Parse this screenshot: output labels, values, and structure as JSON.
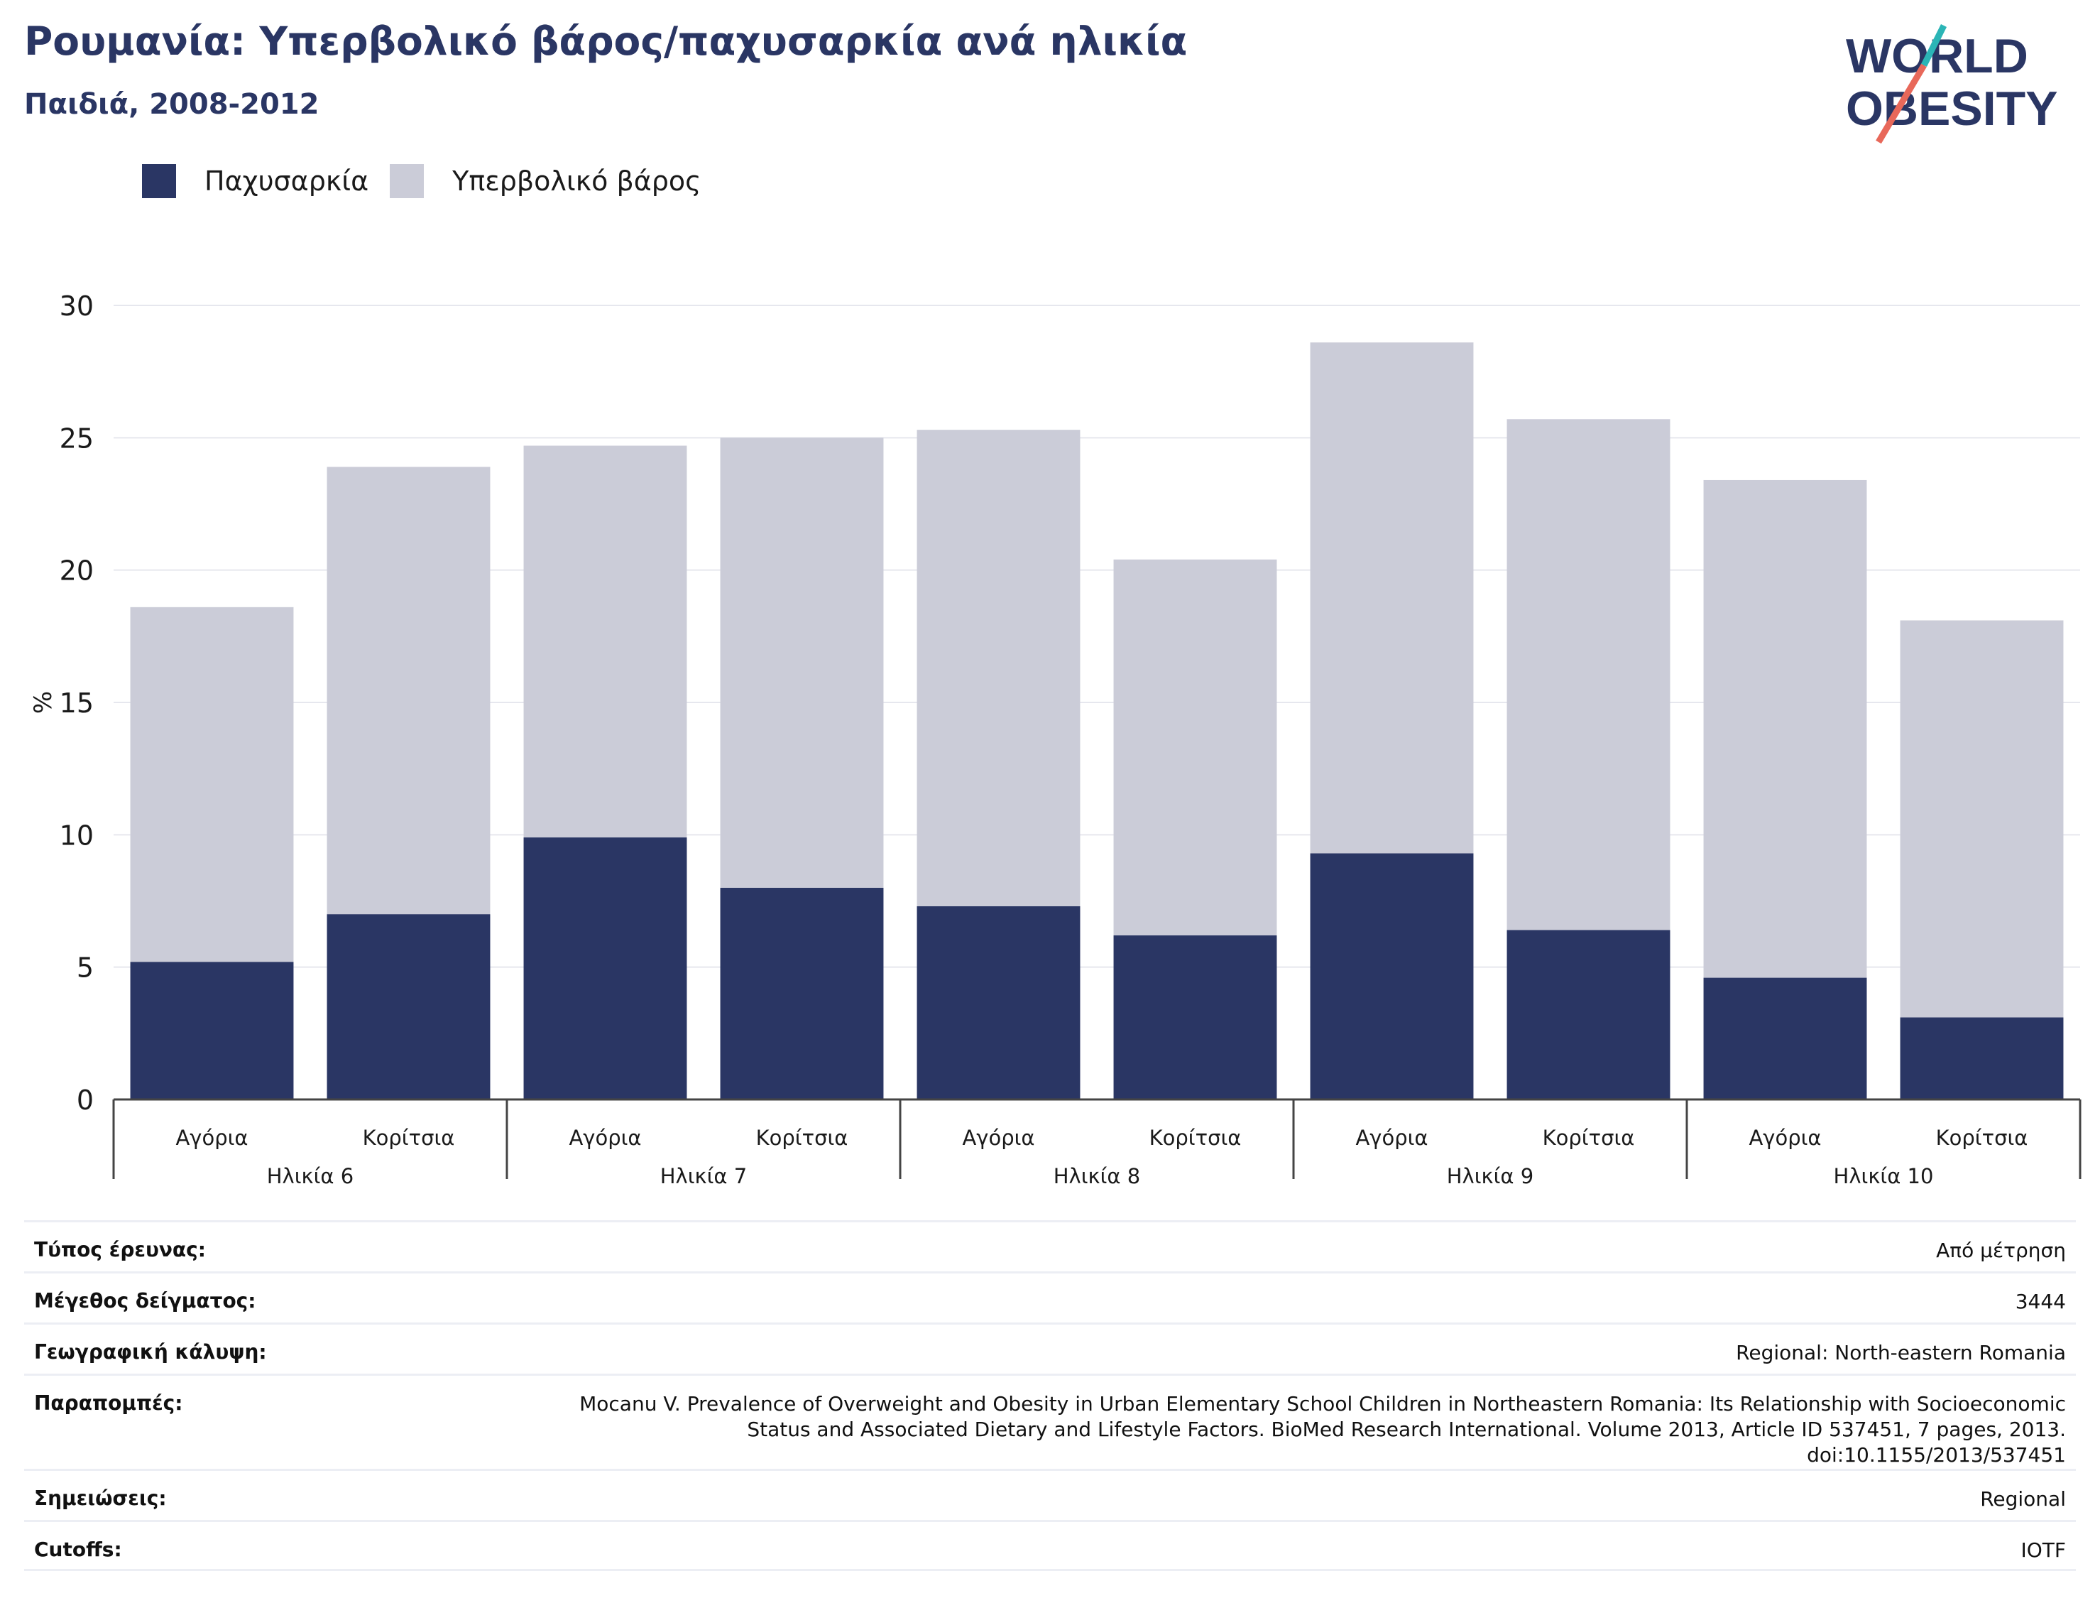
{
  "header": {
    "title": "Ρουμανία: Υπερβολικό βάρος/παχυσαρκία ανά ηλικία",
    "subtitle": "Παιδιά, 2008-2012"
  },
  "logo": {
    "line1": "WORLD",
    "line2": "OBESITY",
    "colors": {
      "text": "#2a3664",
      "slash_red": "#e8685a",
      "slash_teal": "#2bb5b6"
    }
  },
  "legend": [
    {
      "label": "Παχυσαρκία",
      "color": "#2a3664"
    },
    {
      "label": "Υπερβολικό βάρος",
      "color": "#cbccd8"
    }
  ],
  "chart_data": {
    "type": "bar",
    "stacked": true,
    "ylabel": "%",
    "ylim": [
      0,
      30
    ],
    "yticks": [
      0,
      5,
      10,
      15,
      20,
      25,
      30
    ],
    "grid": true,
    "categories": [
      "Αγόρια",
      "Κορίτσια",
      "Αγόρια",
      "Κορίτσια",
      "Αγόρια",
      "Κορίτσια",
      "Αγόρια",
      "Κορίτσια",
      "Αγόρια",
      "Κορίτσια"
    ],
    "groups": [
      "Ηλικία 6",
      "Ηλικία 7",
      "Ηλικία 8",
      "Ηλικία 9",
      "Ηλικία 10"
    ],
    "series": [
      {
        "name": "Παχυσαρκία",
        "color": "#2a3664",
        "values": [
          5.2,
          7.0,
          9.9,
          8.0,
          7.3,
          6.2,
          9.3,
          6.4,
          4.6,
          3.1
        ]
      },
      {
        "name": "Υπερβολικό βάρος",
        "color": "#cbccd8",
        "values": [
          13.4,
          16.9,
          14.8,
          17.0,
          18.0,
          14.2,
          19.3,
          19.3,
          18.8,
          15.0
        ]
      }
    ]
  },
  "info": [
    {
      "label": "Τύπος έρευνας:",
      "value": "Από μέτρηση"
    },
    {
      "label": "Μέγεθος δείγματος:",
      "value": "3444"
    },
    {
      "label": "Γεωγραφική κάλυψη:",
      "value": "Regional: North-eastern Romania"
    },
    {
      "label": "Παραπομπές:",
      "value": "Mocanu V. Prevalence of Overweight and Obesity in Urban Elementary School Children in Northeastern Romania: Its Relationship with Socioeconomic Status and Associated Dietary and Lifestyle Factors. BioMed Research International. Volume 2013, Article ID 537451, 7 pages, 2013. doi:10.1155/2013/537451"
    },
    {
      "label": "Σημειώσεις:",
      "value": "Regional"
    },
    {
      "label": "Cutoffs:",
      "value": "IOTF"
    }
  ]
}
